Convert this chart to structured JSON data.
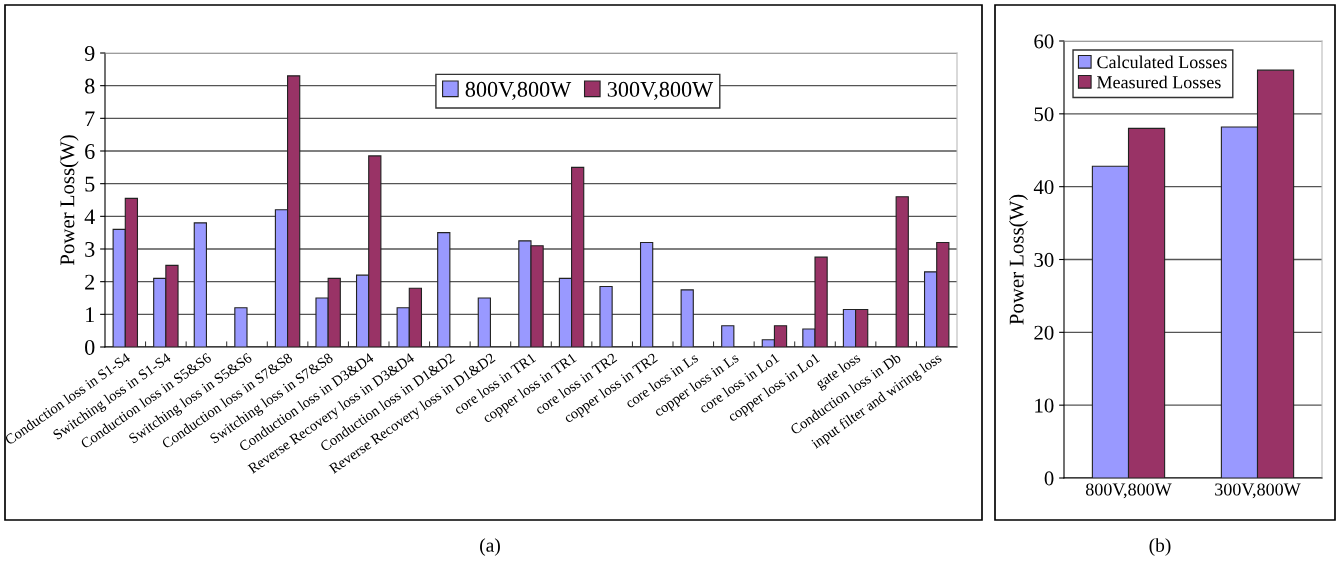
{
  "chart_data": [
    {
      "type": "bar",
      "ylabel": "Power Loss(W)",
      "categories": [
        "Conduction loss in S1-S4",
        "Switching loss in S1-S4",
        "Conduction loss in S5&S6",
        "Switching loss in S5&S6",
        "Conduction loss in S7&S8",
        "Switching loss in S7&S8",
        "Conduction loss in D3&D4",
        "Reverse Recovery loss in D3&D4",
        "Conduction loss in D1&D2",
        "Reverse Recovery loss in D1&D2",
        "core loss in TR1",
        "copper loss in TR1",
        "core loss in TR2",
        "copper loss in TR2",
        "core loss in Ls",
        "copper loss in Ls",
        "core loss in Lo1",
        "copper loss in Lo1",
        "gate loss",
        "Conduction loss in Db",
        "input filter and wiring loss"
      ],
      "series": [
        {
          "name": "800V,800W",
          "color": "#9999ff",
          "values": [
            3.6,
            2.1,
            3.8,
            1.2,
            4.2,
            1.5,
            2.2,
            1.2,
            3.5,
            1.5,
            3.25,
            2.1,
            1.85,
            3.2,
            1.75,
            0.65,
            0.22,
            0.55,
            1.15,
            null,
            2.3
          ]
        },
        {
          "name": "300V,800W",
          "color": "#993366",
          "values": [
            4.55,
            2.5,
            null,
            null,
            8.3,
            2.1,
            5.85,
            1.8,
            null,
            null,
            3.1,
            5.5,
            null,
            null,
            null,
            null,
            0.65,
            2.75,
            1.15,
            4.6,
            3.2
          ]
        }
      ],
      "ylim": [
        0,
        9
      ],
      "yticks": [
        0,
        1,
        2,
        3,
        4,
        5,
        6,
        7,
        8,
        9
      ],
      "grid": "y",
      "legend": "top",
      "annotations": [
        "(a)"
      ]
    },
    {
      "type": "bar",
      "ylabel": "Power Loss(W)",
      "categories": [
        "800V,800W",
        "300V,800W"
      ],
      "series": [
        {
          "name": "Calculated Losses",
          "color": "#9999ff",
          "values": [
            42.8,
            48.2
          ]
        },
        {
          "name": "Measured Losses",
          "color": "#993366",
          "values": [
            48,
            56
          ]
        }
      ],
      "ylim": [
        0,
        60
      ],
      "yticks": [
        0,
        10,
        20,
        30,
        40,
        50,
        60
      ],
      "grid": "y",
      "legend": "top left",
      "annotations": [
        "(b)"
      ]
    }
  ]
}
